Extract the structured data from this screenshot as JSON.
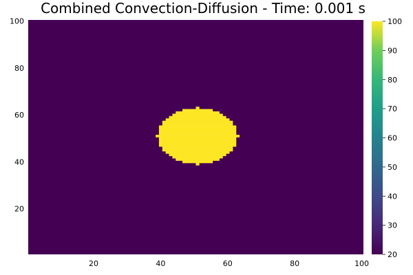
{
  "chart_data": {
    "type": "heatmap",
    "title": "Combined Convection-Diffusion - Time: 0.001 s",
    "xlabel": "",
    "ylabel": "",
    "xlim": [
      1,
      100
    ],
    "ylim": [
      1,
      100
    ],
    "x_ticks": [
      20,
      40,
      60,
      80,
      100
    ],
    "y_ticks": [
      20,
      40,
      60,
      80,
      100
    ],
    "colorbar": {
      "clim": [
        20,
        100
      ],
      "ticks": [
        20,
        30,
        40,
        50,
        60,
        70,
        80,
        90,
        100
      ],
      "colormap": "viridis"
    },
    "grid": false,
    "field": {
      "grid_size": [
        100,
        100
      ],
      "background_value": 20,
      "region": {
        "shape": "ellipse",
        "center": [
          51,
          51
        ],
        "radius_x": 12,
        "radius_y": 12,
        "value": 100
      }
    }
  }
}
